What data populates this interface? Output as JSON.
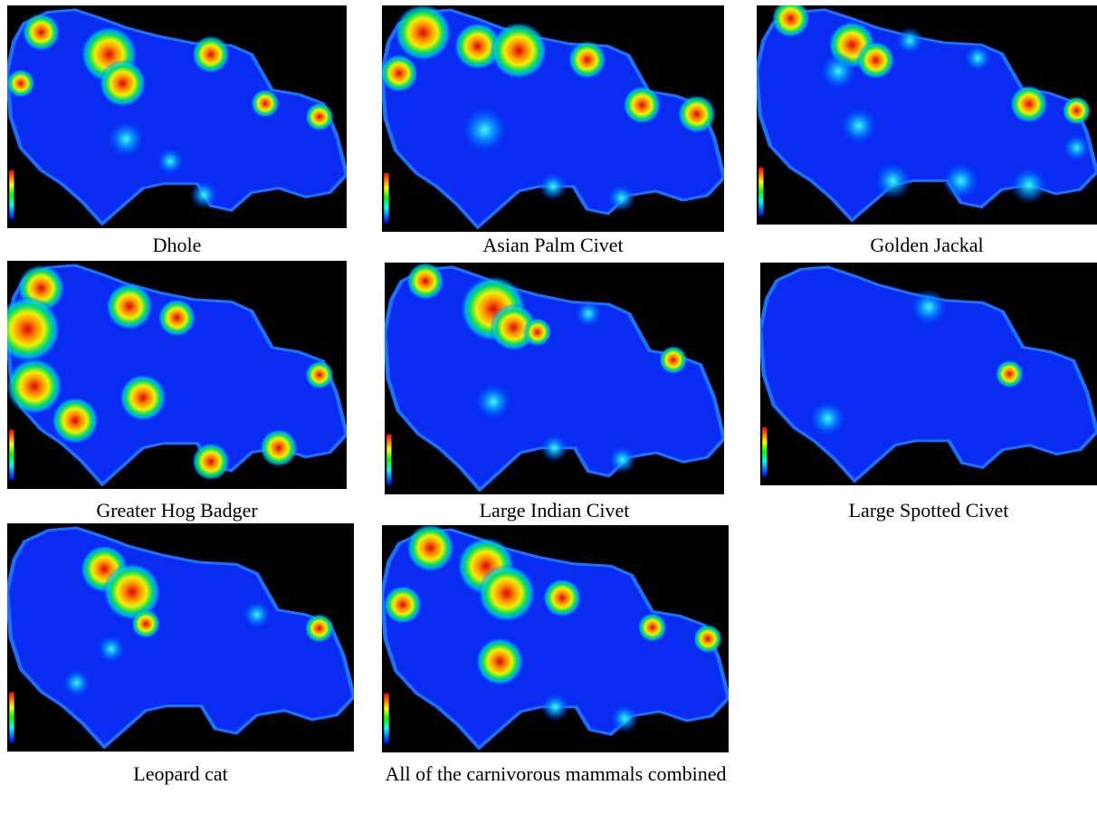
{
  "panels": [
    {
      "caption": "Dhole"
    },
    {
      "caption": "Asian Palm Civet"
    },
    {
      "caption": "Golden Jackal"
    },
    {
      "caption": "Greater Hog Badger"
    },
    {
      "caption": "Large Indian Civet"
    },
    {
      "caption": "Large Spotted Civet"
    },
    {
      "caption": "Leopard cat"
    },
    {
      "caption": "All of the carnivorous mammals combined"
    }
  ]
}
